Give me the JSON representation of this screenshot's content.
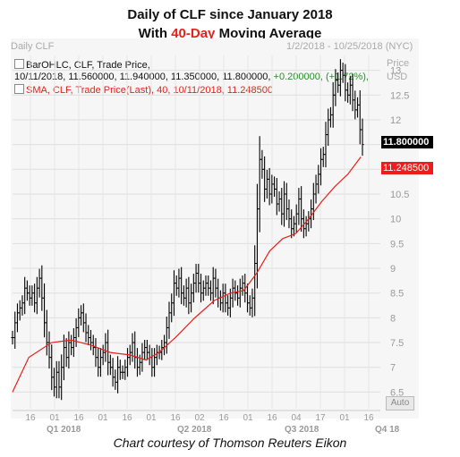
{
  "title_line1": "Daily of CLF since January 2018",
  "title_line2_pre": "With ",
  "title_line2_highlight": "40-Day",
  "title_line2_post": " Moving Average",
  "header_left": "Daily CLF",
  "header_range": "1/2/2018 - 10/25/2018 (NYC)",
  "axis_price_label": "Price",
  "axis_currency_label": "USD",
  "legend_bar": {
    "text": "BarOHLC, CLF, Trade Price,",
    "values": "10/11/2018, 11.560000, 11.940000, 11.350000, 11.800000, ",
    "change": "+0.200000, (+1.72%),"
  },
  "legend_sma": "SMA, CLF, Trade Price(Last), 40, 10/11/2018, 11.248500",
  "last_price_tag": "11.800000",
  "sma_tag": "11.248500",
  "auto_button": "Auto",
  "credit": "Chart courtesy of Thomson Reuters Eikon",
  "colors": {
    "bars": "#000000",
    "sma": "#e8201a",
    "highlight": "#e8201a",
    "change": "#2a8c2a"
  },
  "chart_data": {
    "type": "bar",
    "ylim": [
      6.2,
      13.3
    ],
    "y_ticks": [
      6.5,
      7,
      7.5,
      8,
      8.5,
      9,
      9.5,
      10,
      10.5,
      11,
      11.5,
      12,
      12.5,
      13
    ],
    "y_tick_labels": [
      "6.5",
      "7",
      "7.5",
      "8",
      "8.5",
      "9",
      "9.5",
      "10",
      "10.5",
      "11",
      "11.5",
      "12",
      "12.5",
      "13"
    ],
    "x_tick_labels": [
      "16",
      "01",
      "16",
      "01",
      "16",
      "01",
      "16",
      "02",
      "16",
      "01",
      "16",
      "04",
      "17",
      "01",
      "16"
    ],
    "quarter_labels": [
      "Q1 2018",
      "Q2 2018",
      "Q3 2018",
      "Q4 18"
    ],
    "ohlc_close_path": [
      7.6,
      7.9,
      8.1,
      8.2,
      8.3,
      8.6,
      8.5,
      8.4,
      8.5,
      8.3,
      8.6,
      8.8,
      8.4,
      7.9,
      7.5,
      7.2,
      6.8,
      6.6,
      6.9,
      6.6,
      7.0,
      7.4,
      7.2,
      7.5,
      7.4,
      7.6,
      7.8,
      8.0,
      8.1,
      7.9,
      7.7,
      7.6,
      7.5,
      7.4,
      7.2,
      7.0,
      7.2,
      7.3,
      7.5,
      7.1,
      7.0,
      6.8,
      6.7,
      7.0,
      6.9,
      6.9,
      7.0,
      7.2,
      7.3,
      7.5,
      7.2,
      7.0,
      7.1,
      7.3,
      7.4,
      7.3,
      7.2,
      7.0,
      7.2,
      7.3,
      7.3,
      7.4,
      7.5,
      7.8,
      8.1,
      8.3,
      8.7,
      8.6,
      8.8,
      8.5,
      8.4,
      8.6,
      8.3,
      8.5,
      8.7,
      8.9,
      8.7,
      8.5,
      8.6,
      8.7,
      8.6,
      8.5,
      8.8,
      8.6,
      8.4,
      8.3,
      8.5,
      8.3,
      8.2,
      8.4,
      8.6,
      8.5,
      8.4,
      8.6,
      8.7,
      8.5,
      8.3,
      8.2,
      8.4,
      9.1,
      10.2,
      11.2,
      11.0,
      10.6,
      10.8,
      10.5,
      10.7,
      10.6,
      10.3,
      10.4,
      10.1,
      10.5,
      10.2,
      10.0,
      9.8,
      9.9,
      10.1,
      10.4,
      10.0,
      9.8,
      9.9,
      10.0,
      10.2,
      10.5,
      10.7,
      10.9,
      11.2,
      11.3,
      11.7,
      12.0,
      12.1,
      12.5,
      12.8,
      12.7,
      13.0,
      12.9,
      12.6,
      12.5,
      12.7,
      12.4,
      12.2,
      12.3,
      11.8,
      11.5
    ],
    "sma40_path": [
      [
        0,
        6.5
      ],
      [
        10,
        7.2
      ],
      [
        24,
        7.5
      ],
      [
        36,
        7.55
      ],
      [
        48,
        7.45
      ],
      [
        60,
        7.3
      ],
      [
        72,
        7.25
      ],
      [
        82,
        7.15
      ],
      [
        90,
        7.3
      ],
      [
        100,
        7.6
      ],
      [
        112,
        8.0
      ],
      [
        124,
        8.35
      ],
      [
        134,
        8.5
      ],
      [
        142,
        8.55
      ],
      [
        150,
        8.9
      ],
      [
        158,
        9.35
      ],
      [
        166,
        9.6
      ],
      [
        174,
        9.7
      ],
      [
        182,
        10.0
      ],
      [
        190,
        10.35
      ],
      [
        198,
        10.65
      ],
      [
        206,
        10.9
      ],
      [
        214,
        11.25
      ]
    ]
  }
}
